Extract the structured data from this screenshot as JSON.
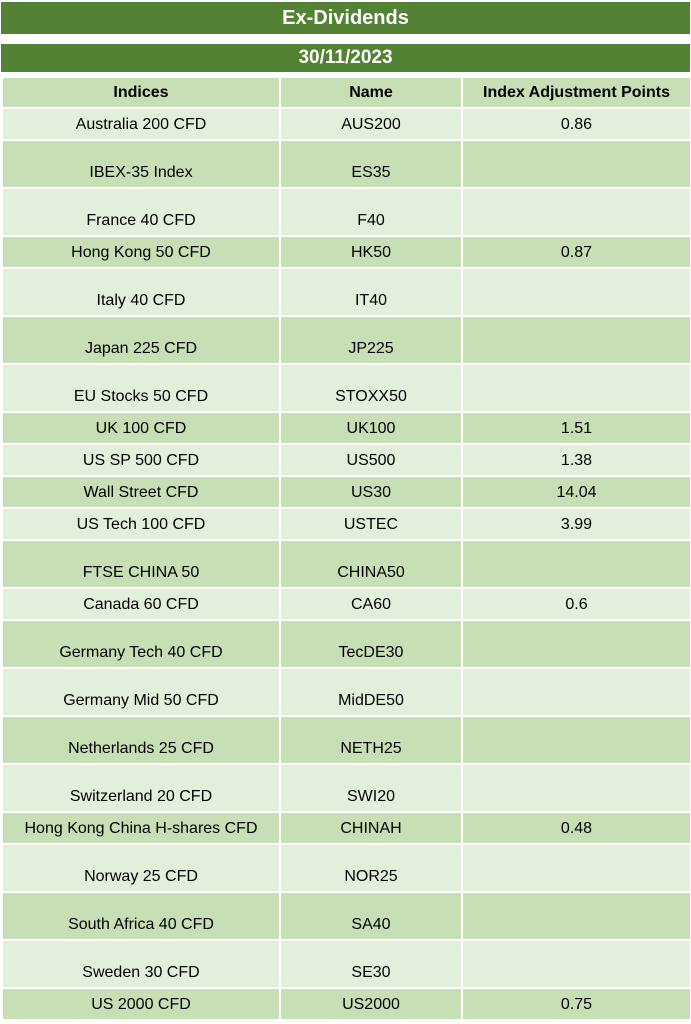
{
  "title": "Ex-Dividends",
  "date": "30/11/2023",
  "headers": [
    "Indices",
    "Name",
    "Index Adjustment Points"
  ],
  "colors": {
    "header_band": "#548235",
    "row_dark": "#c6dfb4",
    "row_light": "#e2efda"
  },
  "rows": [
    {
      "index": "Australia 200 CFD",
      "name": "AUS200",
      "points": "0.86"
    },
    {
      "index": "IBEX-35 Index",
      "name": "ES35",
      "points": ""
    },
    {
      "index": "France 40 CFD",
      "name": "F40",
      "points": ""
    },
    {
      "index": "Hong Kong 50 CFD",
      "name": "HK50",
      "points": "0.87"
    },
    {
      "index": "Italy 40 CFD",
      "name": "IT40",
      "points": ""
    },
    {
      "index": "Japan 225 CFD",
      "name": "JP225",
      "points": ""
    },
    {
      "index": "EU Stocks 50 CFD",
      "name": "STOXX50",
      "points": ""
    },
    {
      "index": "UK 100 CFD",
      "name": "UK100",
      "points": "1.51"
    },
    {
      "index": "US SP 500 CFD",
      "name": "US500",
      "points": "1.38"
    },
    {
      "index": "Wall Street CFD",
      "name": "US30",
      "points": "14.04"
    },
    {
      "index": "US Tech 100 CFD",
      "name": "USTEC",
      "points": "3.99"
    },
    {
      "index": "FTSE CHINA 50",
      "name": "CHINA50",
      "points": ""
    },
    {
      "index": "Canada 60 CFD",
      "name": "CA60",
      "points": "0.6"
    },
    {
      "index": "Germany Tech 40 CFD",
      "name": "TecDE30",
      "points": ""
    },
    {
      "index": "Germany Mid 50 CFD",
      "name": "MidDE50",
      "points": ""
    },
    {
      "index": "Netherlands 25 CFD",
      "name": "NETH25",
      "points": ""
    },
    {
      "index": "Switzerland 20 CFD",
      "name": "SWI20",
      "points": ""
    },
    {
      "index": "Hong Kong China H-shares CFD",
      "name": "CHINAH",
      "points": "0.48"
    },
    {
      "index": "Norway 25 CFD",
      "name": "NOR25",
      "points": ""
    },
    {
      "index": "South Africa 40 CFD",
      "name": "SA40",
      "points": ""
    },
    {
      "index": "Sweden 30 CFD",
      "name": "SE30",
      "points": ""
    },
    {
      "index": "US 2000 CFD",
      "name": "US2000",
      "points": "0.75"
    }
  ]
}
